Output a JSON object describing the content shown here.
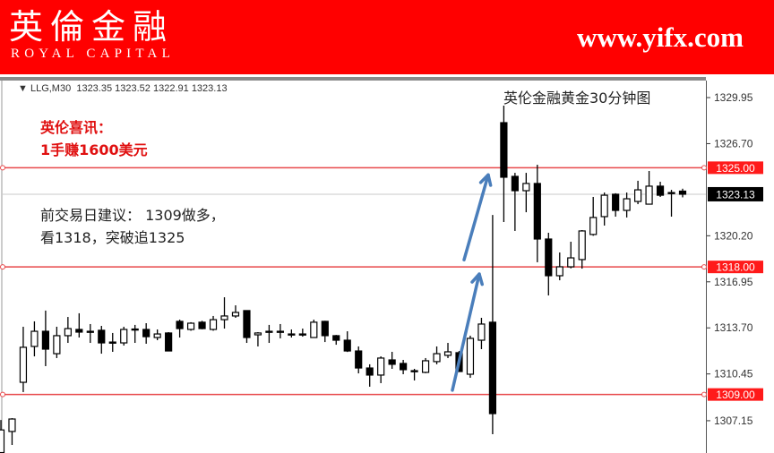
{
  "banner": {
    "logo_cn": "英倫金融",
    "logo_en": "ROYAL CAPITAL",
    "site": "www.yifx.com"
  },
  "chart_header": {
    "symbol": "LLG,M30",
    "open": "1323.35",
    "high": "1323.52",
    "low": "1322.91",
    "close": "1323.13"
  },
  "annotations": {
    "title": "英伦金融黄金30分钟图",
    "promo_line1": "英伦喜讯：",
    "promo_line2": "1手赚1600美元",
    "advice_line1": "前交易日建议： 1309做多，",
    "advice_line2": "看1318，突破追1325"
  },
  "colors": {
    "banner": "#ff0000",
    "level_line": "#e8484a",
    "arrow": "#4a7ebb",
    "bull_fill": "#ffffff",
    "bear_fill": "#000000"
  },
  "chart_data": {
    "type": "candlestick",
    "ylim": [
      1305.6,
      1331.0
    ],
    "y_ticks": [
      "1329.95",
      "1326.70",
      "1320.20",
      "1316.95",
      "1313.70",
      "1310.45",
      "1307.15"
    ],
    "current_price": "1323.13",
    "levels": [
      "1325.00",
      "1318.00",
      "1309.00"
    ],
    "ohlc": [
      [
        1304.9,
        1307.2,
        1304.5,
        1306.5
      ],
      [
        1306.39,
        1307.33,
        1305.44,
        1307.27
      ],
      [
        1309.86,
        1313.78,
        1309.17,
        1312.33
      ],
      [
        1312.39,
        1314.16,
        1311.69,
        1313.46
      ],
      [
        1313.46,
        1314.92,
        1311.0,
        1312.2
      ],
      [
        1311.88,
        1313.78,
        1311.57,
        1313.15
      ],
      [
        1313.15,
        1314.47,
        1312.64,
        1313.65
      ],
      [
        1313.59,
        1314.73,
        1313.02,
        1313.4
      ],
      [
        1313.46,
        1313.97,
        1312.64,
        1313.44
      ],
      [
        1313.53,
        1313.84,
        1311.88,
        1312.64
      ],
      [
        1312.7,
        1313.34,
        1312.01,
        1312.62
      ],
      [
        1312.64,
        1313.78,
        1312.45,
        1313.59
      ],
      [
        1313.59,
        1313.91,
        1312.64,
        1313.62
      ],
      [
        1313.59,
        1314.03,
        1312.58,
        1313.08
      ],
      [
        1313.02,
        1313.59,
        1312.83,
        1313.27
      ],
      [
        1313.34,
        1313.4,
        1312.07,
        1312.07
      ],
      [
        1314.16,
        1314.28,
        1313.02,
        1313.65
      ],
      [
        1313.59,
        1314.1,
        1313.5,
        1314.03
      ],
      [
        1314.1,
        1314.2,
        1313.6,
        1313.65
      ],
      [
        1313.59,
        1314.54,
        1313.5,
        1314.28
      ],
      [
        1314.28,
        1315.86,
        1313.65,
        1314.54
      ],
      [
        1314.54,
        1315.29,
        1314.41,
        1314.79
      ],
      [
        1314.92,
        1314.92,
        1312.64,
        1313.02
      ],
      [
        1313.21,
        1313.4,
        1312.39,
        1313.34
      ],
      [
        1313.46,
        1313.91,
        1312.64,
        1313.46
      ],
      [
        1313.46,
        1313.97,
        1312.96,
        1313.46
      ],
      [
        1313.27,
        1313.59,
        1313.02,
        1313.27
      ],
      [
        1313.27,
        1313.65,
        1313.08,
        1313.27
      ],
      [
        1313.02,
        1314.28,
        1313.0,
        1314.1
      ],
      [
        1314.16,
        1314.2,
        1312.7,
        1313.15
      ],
      [
        1313.15,
        1313.2,
        1312.51,
        1312.83
      ],
      [
        1312.83,
        1313.46,
        1312.0,
        1312.07
      ],
      [
        1312.07,
        1312.39,
        1310.49,
        1310.87
      ],
      [
        1310.87,
        1311.13,
        1309.55,
        1310.37
      ],
      [
        1310.37,
        1311.69,
        1309.8,
        1311.57
      ],
      [
        1311.44,
        1312.01,
        1310.81,
        1311.13
      ],
      [
        1311.19,
        1311.44,
        1310.43,
        1310.75
      ],
      [
        1310.68,
        1310.81,
        1309.99,
        1310.68
      ],
      [
        1310.56,
        1311.57,
        1310.5,
        1311.38
      ],
      [
        1311.32,
        1312.39,
        1311.13,
        1311.88
      ],
      [
        1311.76,
        1312.64,
        1311.57,
        1312.01
      ],
      [
        1311.95,
        1312.07,
        1310.6,
        1310.62
      ],
      [
        1310.43,
        1313.15,
        1310.18,
        1312.96
      ],
      [
        1312.83,
        1314.41,
        1312.2,
        1313.97
      ],
      [
        1314.1,
        1321.67,
        1306.2,
        1307.65
      ],
      [
        1328.18,
        1329.38,
        1321.17,
        1324.33
      ],
      [
        1324.39,
        1324.64,
        1320.54,
        1323.38
      ],
      [
        1323.38,
        1324.64,
        1321.86,
        1323.89
      ],
      [
        1323.89,
        1325.21,
        1318.33,
        1319.97
      ],
      [
        1319.97,
        1320.41,
        1315.99,
        1317.38
      ],
      [
        1317.38,
        1319.02,
        1317.06,
        1318.01
      ],
      [
        1318.01,
        1319.78,
        1317.9,
        1318.64
      ],
      [
        1318.52,
        1320.6,
        1317.88,
        1320.54
      ],
      [
        1320.29,
        1322.94,
        1320.2,
        1321.49
      ],
      [
        1321.55,
        1323.25,
        1320.92,
        1323.06
      ],
      [
        1323.13,
        1323.2,
        1321.55,
        1321.99
      ],
      [
        1321.99,
        1323.25,
        1321.49,
        1322.81
      ],
      [
        1322.62,
        1324.08,
        1322.43,
        1323.44
      ],
      [
        1322.43,
        1324.77,
        1322.4,
        1323.7
      ],
      [
        1323.7,
        1324.01,
        1322.94,
        1323.06
      ],
      [
        1323.25,
        1323.44,
        1321.55,
        1323.25
      ],
      [
        1323.35,
        1323.52,
        1322.91,
        1323.13
      ]
    ],
    "arrows": [
      {
        "from": [
          1309.0,
          1309.3
        ],
        "to": [
          1316.95,
          1317.5
        ]
      },
      {
        "from": [
          1318.0,
          1318.5
        ],
        "to": [
          1325.0,
          1324.5
        ]
      }
    ]
  }
}
